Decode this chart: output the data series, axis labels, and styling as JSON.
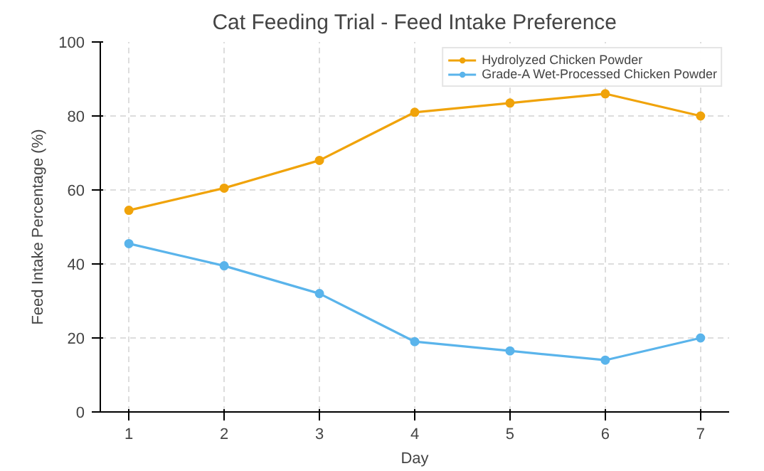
{
  "chart_data": {
    "type": "line",
    "title": "Cat Feeding Trial - Feed Intake Preference",
    "xlabel": "Day",
    "ylabel": "Feed Intake Percentage (%)",
    "x": [
      1,
      2,
      3,
      4,
      5,
      6,
      7
    ],
    "series": [
      {
        "name": "Hydrolyzed Chicken Powder",
        "color": "#f0a30a",
        "values": [
          54.5,
          60.5,
          68,
          81,
          83.5,
          86,
          80
        ]
      },
      {
        "name": "Grade-A Wet-Processed Chicken Powder",
        "color": "#5ab4eb",
        "values": [
          45.5,
          39.5,
          32,
          19,
          16.5,
          14,
          20
        ]
      }
    ],
    "xlim": [
      0.7,
      7.3
    ],
    "xticks": [
      1,
      2,
      3,
      4,
      5,
      6,
      7
    ],
    "ylim": [
      0,
      100
    ],
    "yticks": [
      0,
      20,
      40,
      60,
      80,
      100
    ],
    "grid": true,
    "legend": "top right",
    "marker": "circle",
    "line_style": "solid"
  }
}
